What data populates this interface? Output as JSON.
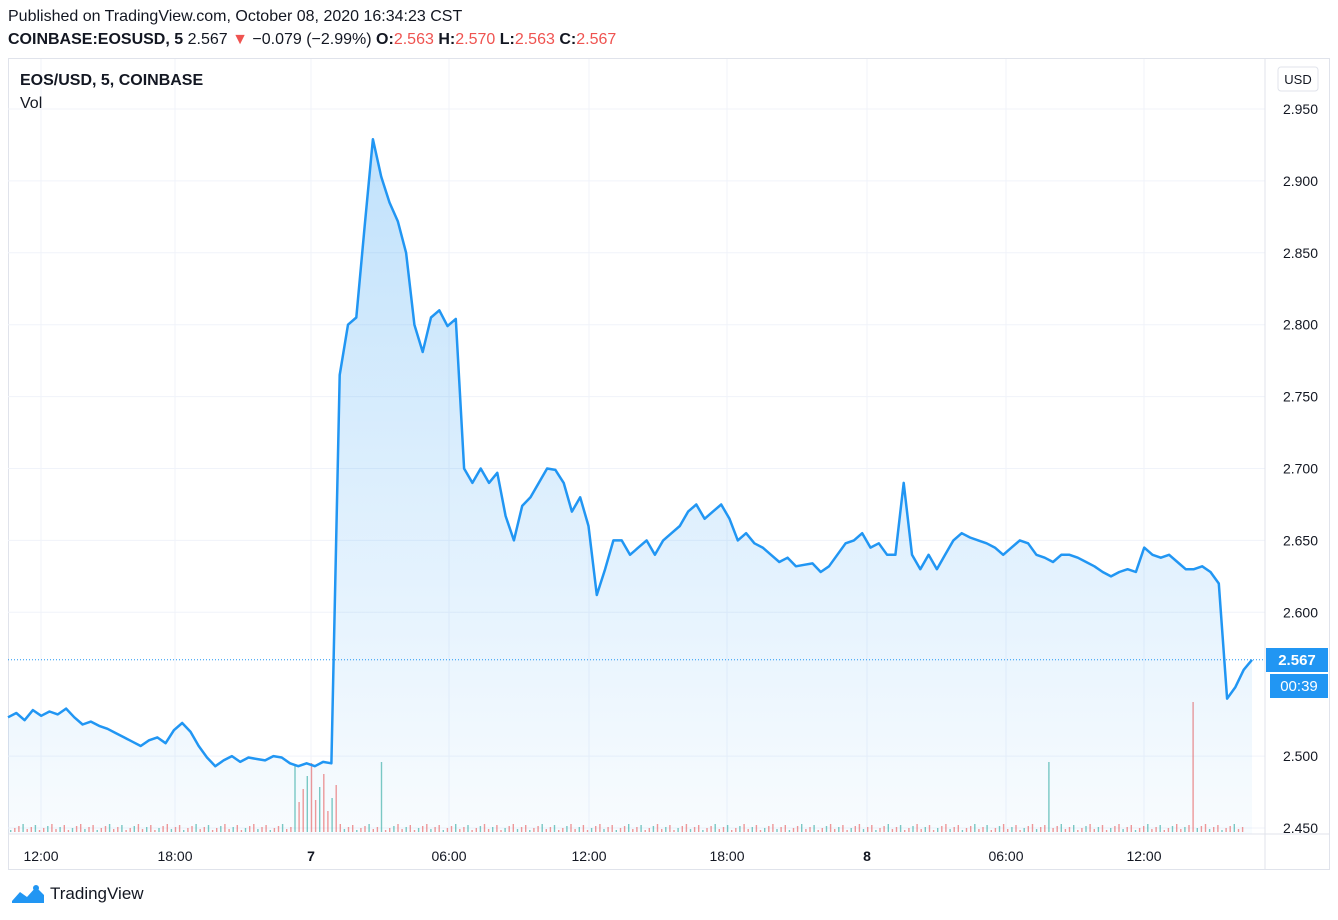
{
  "header": {
    "published": "Published on TradingView.com, October 08, 2020 16:34:23 CST",
    "symbol_line": "COINBASE:EOSUSD, 5",
    "last": "2.567",
    "change": "−0.079 (−2.99%)",
    "o_label": "O:",
    "o_value": "2.563",
    "h_label": "H:",
    "h_value": "2.570",
    "l_label": "L:",
    "l_value": "2.563",
    "c_label": "C:",
    "c_value": "2.567",
    "arrow": "▼"
  },
  "legend": {
    "title": "EOS/USD, 5, COINBASE",
    "vol": "Vol"
  },
  "currency_button": "USD",
  "price_label": {
    "value": "2.567",
    "countdown": "00:39"
  },
  "footer": {
    "brand": "TradingView"
  },
  "colors": {
    "line": "#2196f3",
    "down": "#ef5350",
    "up": "#26a69a",
    "grid": "#f0f3fa"
  },
  "chart_data": {
    "type": "area",
    "x_tick_labels": [
      "12:00",
      "18:00",
      "7",
      "06:00",
      "12:00",
      "18:00",
      "8",
      "06:00",
      "12:00"
    ],
    "y_tick_labels": [
      "2.950",
      "2.900",
      "2.850",
      "2.800",
      "2.750",
      "2.700",
      "2.650",
      "2.600",
      "2.500",
      "2.450"
    ],
    "ylim": [
      2.445,
      2.975
    ],
    "series": [
      {
        "values": [
          2.527,
          2.53,
          2.525,
          2.532,
          2.528,
          2.531,
          2.529,
          2.533,
          2.527,
          2.522,
          2.524,
          2.521,
          2.519,
          2.516,
          2.513,
          2.51,
          2.507,
          2.511,
          2.513,
          2.509,
          2.518,
          2.523,
          2.517,
          2.507,
          2.499,
          2.493,
          2.497,
          2.5,
          2.496,
          2.499,
          2.498,
          2.497,
          2.5,
          2.499,
          2.495,
          2.493,
          2.495,
          2.493,
          2.496,
          2.495,
          2.765,
          2.8,
          2.805,
          2.868,
          2.929,
          2.903,
          2.885,
          2.872,
          2.85,
          2.8,
          2.781,
          2.805,
          2.81,
          2.799,
          2.804,
          2.7,
          2.69,
          2.7,
          2.69,
          2.697,
          2.667,
          2.65,
          2.674,
          2.68,
          2.69,
          2.7,
          2.699,
          2.69,
          2.67,
          2.68,
          2.66,
          2.612,
          2.63,
          2.65,
          2.65,
          2.64,
          2.645,
          2.65,
          2.64,
          2.65,
          2.655,
          2.66,
          2.67,
          2.675,
          2.665,
          2.67,
          2.675,
          2.665,
          2.65,
          2.655,
          2.648,
          2.645,
          2.64,
          2.635,
          2.638,
          2.632,
          2.633,
          2.634,
          2.628,
          2.632,
          2.64,
          2.648,
          2.65,
          2.655,
          2.645,
          2.648,
          2.64,
          2.64,
          2.69,
          2.64,
          2.63,
          2.64,
          2.63,
          2.64,
          2.65,
          2.655,
          2.652,
          2.65,
          2.648,
          2.645,
          2.64,
          2.645,
          2.65,
          2.648,
          2.64,
          2.638,
          2.635,
          2.64,
          2.64,
          2.638,
          2.635,
          2.632,
          2.628,
          2.625,
          2.628,
          2.63,
          2.628,
          2.645,
          2.64,
          2.638,
          2.64,
          2.635,
          2.63,
          2.63,
          2.632,
          2.628,
          2.62,
          2.54,
          2.548,
          2.56,
          2.567
        ]
      }
    ]
  }
}
